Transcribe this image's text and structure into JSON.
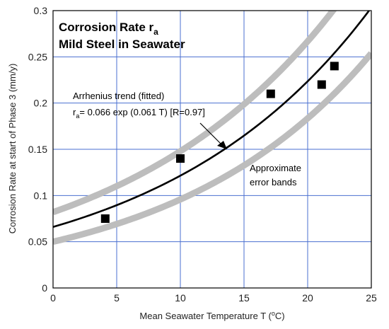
{
  "chart_data": {
    "type": "scatter",
    "title_line1": "Corrosion Rate r",
    "title_sub": "a",
    "title_line2": "Mild Steel in Seawater",
    "xlabel_prefix": "Mean Seawater Temperature T (",
    "xlabel_o": "o",
    "xlabel_suffix": "C)",
    "ylabel": "Corrosion Rate at start of Phase 3 (mm/y)",
    "xlim": [
      0,
      25
    ],
    "ylim": [
      0,
      0.3
    ],
    "xticks": [
      0,
      5,
      10,
      15,
      20,
      25
    ],
    "yticks": [
      0,
      0.05,
      0.1,
      0.15,
      0.2,
      0.25,
      0.3
    ],
    "grid": true,
    "points": [
      {
        "x": 4.1,
        "y": 0.075
      },
      {
        "x": 10.0,
        "y": 0.14
      },
      {
        "x": 17.1,
        "y": 0.21
      },
      {
        "x": 21.1,
        "y": 0.22
      },
      {
        "x": 22.1,
        "y": 0.24
      }
    ],
    "trend": {
      "a": 0.066,
      "b": 0.061
    },
    "upper_band": {
      "a": 0.082,
      "b": 0.059
    },
    "lower_band": {
      "a": 0.05,
      "b": 0.065
    },
    "annotation_trend_line1": "Arrhenius trend (fitted)",
    "annotation_trend_r": "r",
    "annotation_trend_sub": "a",
    "annotation_trend_eq": "= 0.066 exp (0.061 T)  [R=0.97]",
    "annotation_bands_line1": "Approximate",
    "annotation_bands_line2": "error bands",
    "colors": {
      "grid": "#4a6fd0",
      "band": "#bdbdbd",
      "trend": "#000000",
      "point": "#000000"
    }
  }
}
